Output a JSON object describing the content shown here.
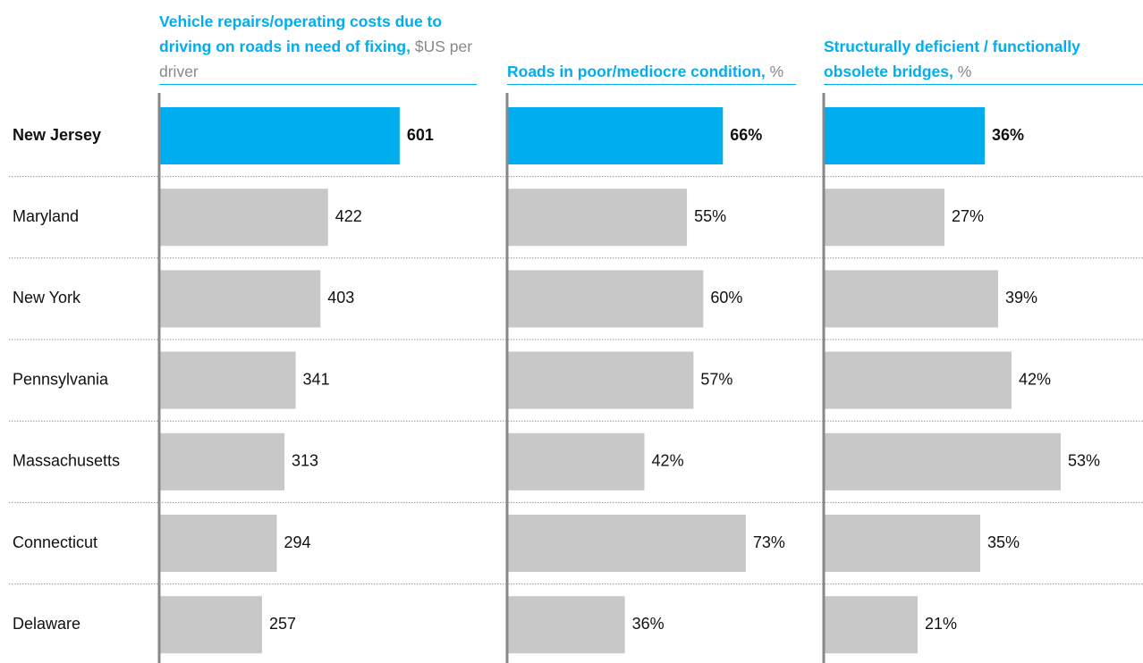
{
  "chart_data": [
    {
      "type": "bar",
      "title": "Vehicle repairs/operating costs due to driving on roads in need of fixing,",
      "unit": "$US per driver",
      "categories": [
        "New Jersey",
        "Maryland",
        "New York",
        "Pennsylvania",
        "Massachusetts",
        "Connecticut",
        "Delaware"
      ],
      "values": [
        601,
        422,
        403,
        341,
        313,
        294,
        257
      ],
      "colors": [
        "#00aeef",
        "#c8c8c8",
        "#c8c8c8",
        "#c8c8c8",
        "#c8c8c8",
        "#c8c8c8",
        "#c8c8c8"
      ],
      "xlim": [
        0,
        760
      ]
    },
    {
      "type": "bar",
      "title": "Roads in poor/mediocre condition,",
      "unit": "%",
      "values": [
        66,
        55,
        60,
        57,
        42,
        73,
        36
      ],
      "value_labels": [
        "66%",
        "55%",
        "60%",
        "57%",
        "42%",
        "73%",
        "36%"
      ],
      "colors": [
        "#00aeef",
        "#c8c8c8",
        "#c8c8c8",
        "#c8c8c8",
        "#c8c8c8",
        "#c8c8c8",
        "#c8c8c8"
      ],
      "xlim": [
        0,
        93
      ]
    },
    {
      "type": "bar",
      "title": "Structurally deficient / functionally obsolete bridges,",
      "unit": "%",
      "values": [
        36,
        27,
        39,
        42,
        53,
        35,
        21
      ],
      "value_labels": [
        "36%",
        "27%",
        "39%",
        "42%",
        "53%",
        "35%",
        "21%"
      ],
      "colors": [
        "#00aeef",
        "#c8c8c8",
        "#c8c8c8",
        "#c8c8c8",
        "#c8c8c8",
        "#c8c8c8",
        "#c8c8c8"
      ],
      "xlim": [
        0,
        68
      ]
    }
  ]
}
